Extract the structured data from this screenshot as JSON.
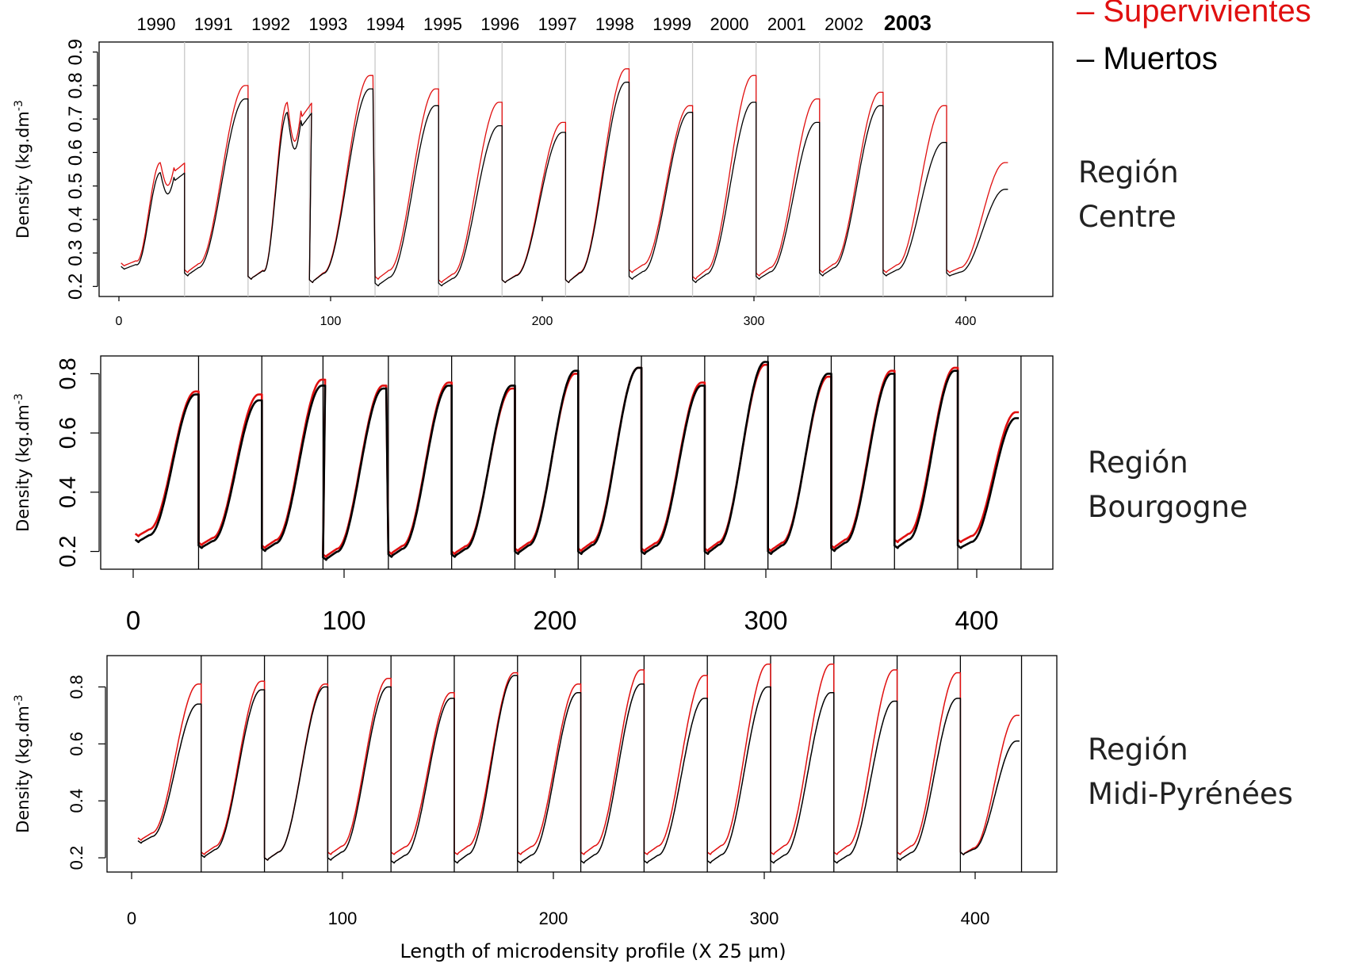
{
  "legend": {
    "survivors_label": "– Supervivientes",
    "dead_label": "– Muertos"
  },
  "colors": {
    "survivors": "#e01010",
    "dead": "#000000",
    "divider_centre": "#c8c8c8",
    "divider_other": "#000000"
  },
  "years": [
    "1990",
    "1991",
    "1992",
    "1993",
    "1994",
    "1995",
    "1996",
    "1997",
    "1998",
    "1999",
    "2000",
    "2001",
    "2002",
    "2003"
  ],
  "highlight_year": "2003",
  "regions": [
    {
      "line1": "Región",
      "line2": "Centre"
    },
    {
      "line1": "Región",
      "line2": "Bourgogne"
    },
    {
      "line1": "Región",
      "line2": "Midi-Pyrénées"
    }
  ],
  "xlabel": "Length of microdensity profile (X 25 µm)",
  "chart_data": [
    {
      "type": "line",
      "panel": "Centre",
      "ylabel": "Density (kg.dm-3)",
      "xlim": [
        0,
        425
      ],
      "ylim": [
        0.17,
        0.93
      ],
      "yticks": [
        0.2,
        0.3,
        0.4,
        0.5,
        0.6,
        0.7,
        0.8,
        0.9
      ],
      "xticks": [
        0,
        100,
        200,
        300,
        400
      ],
      "year_boundaries": [
        1,
        31,
        61,
        90,
        121,
        151,
        181,
        211,
        241,
        271,
        301,
        331,
        361,
        391
      ],
      "ring_length": 30,
      "last_ring_length": 29,
      "series": [
        {
          "name": "Supervivientes",
          "start": [
            0.27,
            0.25,
            0.23,
            0.22,
            0.23,
            0.22,
            0.22,
            0.22,
            0.25,
            0.23,
            0.24,
            0.25,
            0.25,
            0.25
          ],
          "peak": [
            0.57,
            0.8,
            0.75,
            0.83,
            0.79,
            0.75,
            0.69,
            0.85,
            0.74,
            0.83,
            0.76,
            0.78,
            0.74,
            0.57
          ]
        },
        {
          "name": "Muertos",
          "start": [
            0.26,
            0.24,
            0.23,
            0.22,
            0.21,
            0.21,
            0.22,
            0.22,
            0.23,
            0.22,
            0.23,
            0.24,
            0.24,
            0.24
          ],
          "peak": [
            0.54,
            0.76,
            0.72,
            0.79,
            0.74,
            0.68,
            0.66,
            0.81,
            0.72,
            0.75,
            0.69,
            0.74,
            0.63,
            0.49
          ]
        }
      ],
      "notes": "1990 and 1992 rings show a false ring (double peak)"
    },
    {
      "type": "line",
      "panel": "Bourgogne",
      "ylabel": "Density (kg.dm-3)",
      "xlim": [
        0,
        425
      ],
      "ylim": [
        0.14,
        0.86
      ],
      "yticks": [
        0.2,
        0.4,
        0.6,
        0.8
      ],
      "xticks": [
        0,
        100,
        200,
        300,
        400
      ],
      "year_boundaries": [
        1,
        31,
        61,
        90,
        121,
        151,
        181,
        211,
        241,
        271,
        301,
        331,
        361,
        391
      ],
      "ring_length": 30,
      "last_ring_length": 29,
      "series": [
        {
          "name": "Supervivientes",
          "start": [
            0.26,
            0.23,
            0.22,
            0.19,
            0.2,
            0.2,
            0.21,
            0.21,
            0.21,
            0.21,
            0.21,
            0.22,
            0.24,
            0.24
          ],
          "peak": [
            0.74,
            0.73,
            0.78,
            0.76,
            0.77,
            0.75,
            0.8,
            0.82,
            0.77,
            0.83,
            0.79,
            0.81,
            0.82,
            0.67
          ]
        },
        {
          "name": "Muertos",
          "start": [
            0.24,
            0.22,
            0.21,
            0.18,
            0.19,
            0.19,
            0.2,
            0.2,
            0.2,
            0.2,
            0.2,
            0.21,
            0.22,
            0.22
          ],
          "peak": [
            0.73,
            0.71,
            0.76,
            0.75,
            0.76,
            0.76,
            0.81,
            0.82,
            0.76,
            0.84,
            0.8,
            0.8,
            0.81,
            0.65
          ]
        }
      ]
    },
    {
      "type": "line",
      "panel": "Midi-Pyrénées",
      "ylabel": "Density (kg.dm-3)",
      "xlabel": "Length of microdensity profile (X 25 µm)",
      "xlim": [
        -5,
        436
      ],
      "ylim": [
        0.15,
        0.91
      ],
      "yticks": [
        0.2,
        0.4,
        0.6,
        0.8
      ],
      "xticks": [
        0,
        100,
        200,
        300,
        400
      ],
      "year_boundaries": [
        3,
        33,
        63,
        93,
        123,
        153,
        183,
        213,
        243,
        273,
        303,
        333,
        363,
        393
      ],
      "ring_length": 30,
      "last_ring_length": 28,
      "series": [
        {
          "name": "Supervivientes",
          "start": [
            0.27,
            0.22,
            0.2,
            0.22,
            0.22,
            0.22,
            0.22,
            0.22,
            0.22,
            0.22,
            0.22,
            0.22,
            0.22,
            0.22
          ],
          "peak": [
            0.81,
            0.82,
            0.81,
            0.83,
            0.78,
            0.85,
            0.81,
            0.86,
            0.84,
            0.88,
            0.88,
            0.86,
            0.85,
            0.7
          ]
        },
        {
          "name": "Muertos",
          "start": [
            0.26,
            0.21,
            0.2,
            0.2,
            0.19,
            0.19,
            0.19,
            0.19,
            0.19,
            0.19,
            0.19,
            0.19,
            0.2,
            0.22
          ],
          "peak": [
            0.74,
            0.79,
            0.8,
            0.8,
            0.76,
            0.84,
            0.78,
            0.81,
            0.76,
            0.8,
            0.78,
            0.75,
            0.76,
            0.61
          ]
        }
      ]
    }
  ]
}
